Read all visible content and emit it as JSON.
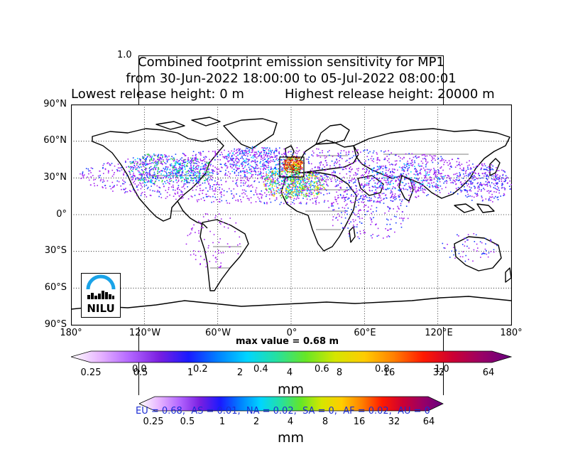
{
  "title": {
    "line1": "Combined footprint emission sensitivity for MP1",
    "line2": "from 30-Jun-2022 18:00:00 to 05-Jul-2022 08:00:01",
    "line3_left": "Lowest release height: 0 m",
    "line3_right": "Highest release height: 20000 m"
  },
  "ghost_axis": {
    "top_label": "1.0",
    "ticks": [
      "0.0",
      "0.2",
      "0.4",
      "0.6",
      "0.8",
      "1.0"
    ]
  },
  "map": {
    "lat_labels": [
      "90°N",
      "60°N",
      "30°N",
      "0°",
      "30°S",
      "60°S",
      "90°S"
    ],
    "lon_labels": [
      "180°",
      "120°W",
      "60°W",
      "0°",
      "60°E",
      "120°E",
      "180°"
    ],
    "max_value_text": "max value = 0.68 m",
    "logo_text": "NILU"
  },
  "colorbar_main": {
    "ticks": [
      "0.25",
      "0.5",
      "1",
      "2",
      "4",
      "8",
      "16",
      "32",
      "64"
    ],
    "unit": "mm",
    "colors": [
      "#ffffff",
      "#e6b3ff",
      "#b366ff",
      "#7a1fe0",
      "#1a1aff",
      "#0080ff",
      "#00d5ff",
      "#26e0a0",
      "#66e626",
      "#d5e600",
      "#ffcc00",
      "#ff8000",
      "#ff1a00",
      "#cc0033",
      "#990066",
      "#660080"
    ]
  },
  "colorbar_second": {
    "ticks": [
      "0.25",
      "0.5",
      "1",
      "2",
      "4",
      "8",
      "16",
      "32",
      "64"
    ],
    "unit": "mm",
    "stats_text": "EU = 0.68,  AS = 0.01,  NA = 0.02,  SA = 0,  AF = 0.02,  AU = 0"
  },
  "emission_colors": {
    "purple": "#a21ff0",
    "blue": "#1a3dff",
    "cyan": "#00cfff",
    "green": "#33d93a",
    "yellow": "#ffd000",
    "orange": "#ff8c00",
    "red": "#ff1a00",
    "darkred": "#b3002d"
  }
}
